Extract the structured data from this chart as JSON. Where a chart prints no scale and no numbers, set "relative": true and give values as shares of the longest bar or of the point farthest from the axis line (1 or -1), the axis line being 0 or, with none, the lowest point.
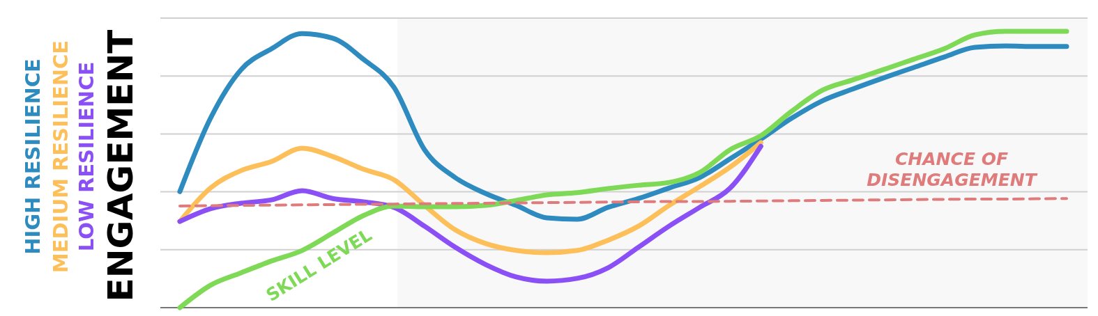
{
  "chart_data": {
    "type": "line",
    "relative": true,
    "ylabel": "ENGAGEMENT",
    "legend": "left",
    "grid": "y",
    "line_style": "solid",
    "marker": "none",
    "categories": [
      null,
      null,
      null,
      null,
      null,
      null,
      null,
      null,
      null,
      null,
      null,
      null,
      null,
      null,
      null,
      null,
      null,
      null,
      null,
      null,
      null,
      null,
      null,
      null,
      null,
      null,
      null,
      null,
      null,
      null
    ],
    "series": [
      {
        "name": "HIGH RESILIENCE",
        "color": "#2e8bc0",
        "values": [
          0.42,
          0.685,
          0.861,
          0.937,
          0.992,
          0.975,
          0.899,
          0.798,
          0.572,
          0.471,
          0.413,
          0.37,
          0.325,
          0.32,
          0.363,
          0.395,
          0.433,
          0.471,
          0.539,
          0.61,
          0.685,
          0.748,
          0.791,
          0.831,
          0.869,
          0.907,
          0.942,
          0.947,
          0.945,
          0.945
        ]
      },
      {
        "name": "MEDIUM RESILIENCE",
        "color": "#fdbf5a",
        "values": [
          0.312,
          0.433,
          0.496,
          0.529,
          0.577,
          0.547,
          0.501,
          0.463,
          0.37,
          0.282,
          0.232,
          0.207,
          0.199,
          0.207,
          0.244,
          0.295,
          0.37,
          0.438,
          0.509,
          0.597,
          null,
          null,
          null,
          null,
          null,
          null,
          null,
          null,
          null,
          null
        ]
      },
      {
        "name": "LOW RESILIENCE",
        "color": "#8b50f5",
        "values": [
          0.312,
          0.358,
          0.378,
          0.39,
          0.423,
          0.395,
          0.383,
          0.363,
          0.295,
          0.219,
          0.156,
          0.111,
          0.096,
          0.106,
          0.144,
          0.219,
          0.295,
          0.363,
          0.433,
          0.584,
          null,
          null,
          null,
          null,
          null,
          null,
          null,
          null,
          null,
          null
        ]
      },
      {
        "name": "SKILL LEVEL",
        "color": "#7ed957",
        "values": [
          0,
          0.081,
          0.126,
          0.169,
          0.207,
          0.27,
          0.333,
          0.368,
          0.365,
          0.365,
          0.37,
          0.388,
          0.408,
          0.416,
          0.431,
          0.443,
          0.453,
          0.489,
          0.572,
          0.622,
          0.71,
          0.786,
          0.824,
          0.861,
          0.899,
          0.937,
          0.987,
          1,
          1,
          1
        ]
      },
      {
        "name": "CHANCE OF\nDISENGAGEMENT",
        "color": "#e07b7b",
        "line_style": "dashed",
        "values": [
          0.368,
          0.369,
          0.37,
          0.371,
          0.372,
          0.373,
          0.374,
          0.375,
          0.376,
          0.377,
          0.378,
          0.379,
          0.38,
          0.381,
          0.382,
          0.383,
          0.384,
          0.384,
          0.385,
          0.386,
          0.387,
          0.388,
          0.389,
          0.39,
          0.391,
          0.392,
          0.393,
          0.393,
          0.394,
          0.395
        ]
      }
    ]
  }
}
